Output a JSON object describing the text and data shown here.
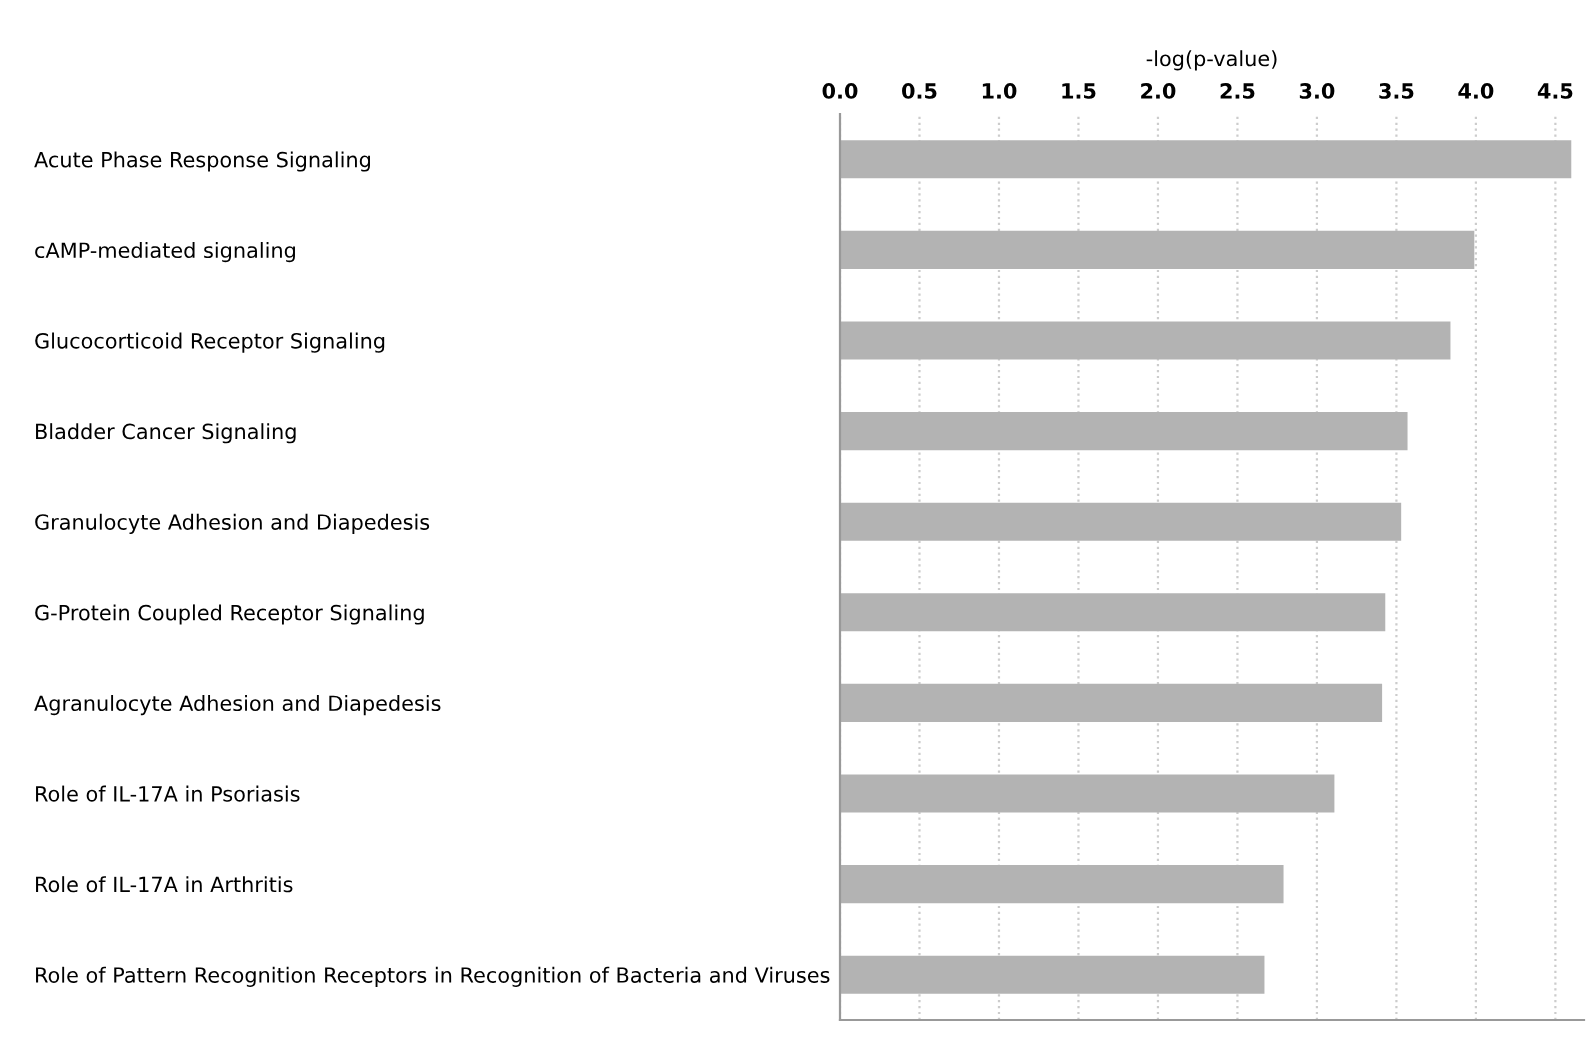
{
  "chart_data": {
    "type": "bar",
    "orientation": "horizontal",
    "xlabel": "-log(p-value)",
    "categories": [
      "Acute Phase Response Signaling",
      "cAMP-mediated signaling",
      "Glucocorticoid Receptor Signaling",
      "Bladder Cancer Signaling",
      "Granulocyte Adhesion and Diapedesis",
      "G-Protein Coupled Receptor Signaling",
      "Agranulocyte Adhesion and Diapedesis",
      "Role of IL-17A in Psoriasis",
      "Role of IL-17A in Arthritis",
      "Role of Pattern Recognition Receptors in Recognition of Bacteria and Viruses"
    ],
    "values": [
      4.6,
      3.99,
      3.84,
      3.57,
      3.53,
      3.43,
      3.41,
      3.11,
      2.79,
      2.67
    ],
    "color": "#b3b3b3",
    "xlim": [
      0,
      4.68
    ],
    "xticks": [
      {
        "value": 0,
        "label": "0.0"
      },
      0.5,
      {
        "value": 1,
        "label": "1.0"
      },
      1.5,
      {
        "value": 2,
        "label": "2.0"
      },
      2.5,
      {
        "value": 3,
        "label": "3.0"
      },
      3.5,
      {
        "value": 4,
        "label": "4.0"
      },
      4.5
    ],
    "grid": "x",
    "line_style": "dotted"
  }
}
